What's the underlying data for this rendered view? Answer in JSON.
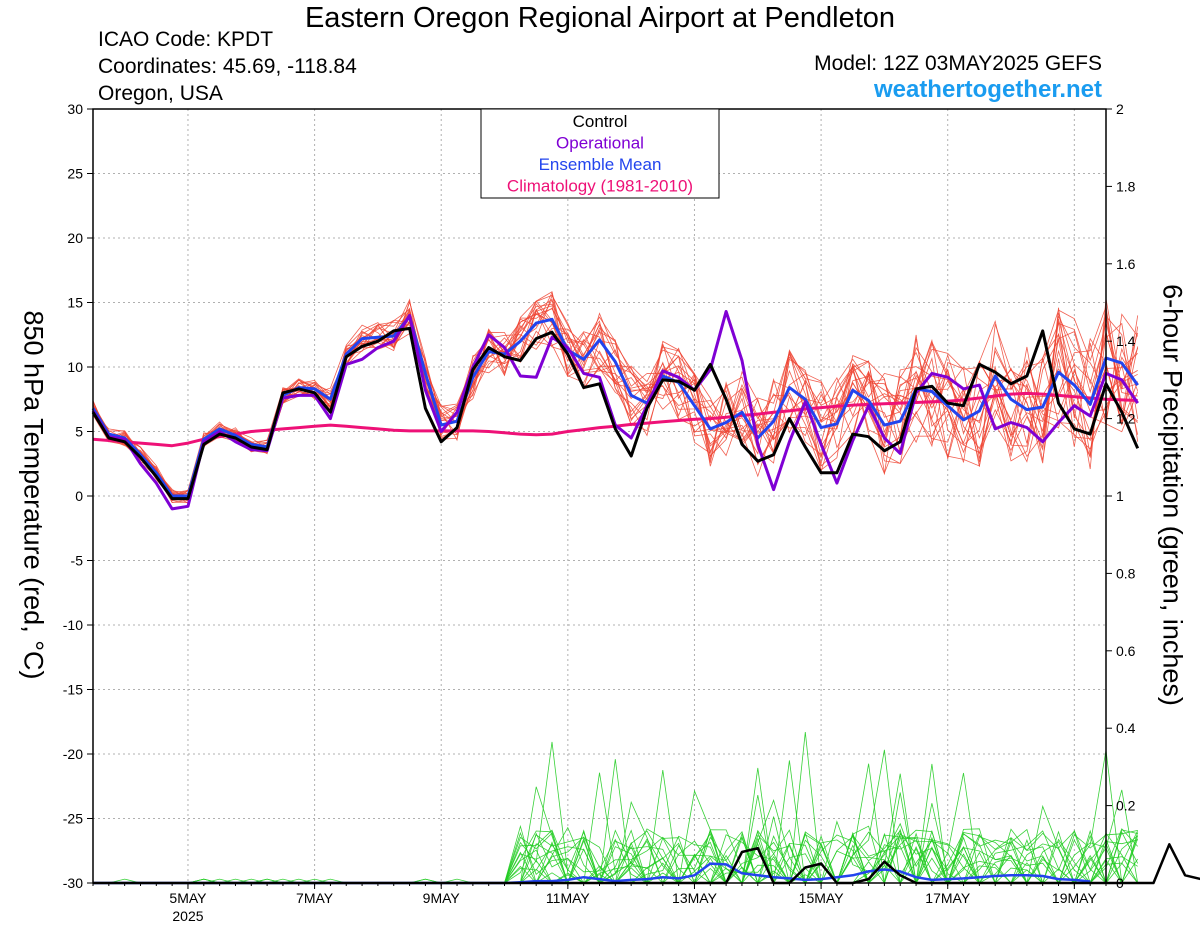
{
  "header": {
    "title": "Eastern Oregon Regional Airport at Pendleton",
    "icao": "ICAO Code: KPDT",
    "coordinates": "Coordinates: 45.69, -118.84",
    "location": "Oregon, USA",
    "model": "Model: 12Z 03MAY2025 GEFS",
    "site": "weathertogether.net"
  },
  "colors": {
    "control": "#000000",
    "operational": "#7f00d4",
    "ensemble_mean": "#2244ee",
    "climatology": "#ee1177",
    "members_temp": "#ee4433",
    "members_precip": "#22cc22",
    "site_link": "#1a9cf0"
  },
  "chart_data": {
    "type": "line",
    "xlabel": "",
    "ylabel": "850 hPa Temperature (red, °C)",
    "y2label": "6-hour Precipitation (green, inches)",
    "x_ticks": [
      {
        "day": 5,
        "label": "5MAY",
        "sublabel": "2025"
      },
      {
        "day": 7,
        "label": "7MAY",
        "sublabel": ""
      },
      {
        "day": 9,
        "label": "9MAY",
        "sublabel": ""
      },
      {
        "day": 11,
        "label": "11MAY",
        "sublabel": ""
      },
      {
        "day": 13,
        "label": "13MAY",
        "sublabel": ""
      },
      {
        "day": 15,
        "label": "15MAY",
        "sublabel": ""
      },
      {
        "day": 17,
        "label": "17MAY",
        "sublabel": ""
      },
      {
        "day": 19,
        "label": "19MAY",
        "sublabel": ""
      }
    ],
    "xlim": [
      3.5,
      19.5
    ],
    "ylim": [
      -30,
      30
    ],
    "y_ticks": [
      30,
      25,
      20,
      15,
      10,
      5,
      0,
      -5,
      -10,
      -15,
      -20,
      -25,
      -30
    ],
    "y2lim": [
      0,
      2
    ],
    "y2_ticks": [
      "2",
      "1.8",
      "1.6",
      "1.4",
      "1.2",
      "1",
      "0.8",
      "0.6",
      "0.4",
      "0.2",
      "0"
    ],
    "grid": true,
    "legend": {
      "position": "top-center",
      "entries": [
        {
          "label": "Control",
          "color": "#000000"
        },
        {
          "label": "Operational",
          "color": "#7f00d4"
        },
        {
          "label": "Ensemble Mean",
          "color": "#2244ee"
        },
        {
          "label": "Climatology (1981-2010)",
          "color": "#ee1177"
        }
      ]
    },
    "x_start_day": 3.5,
    "x_step_days": 0.25,
    "series": [
      {
        "name": "Control",
        "color": "#000000",
        "axis": "temp",
        "values": [
          6.5,
          4.5,
          4.2,
          3.0,
          1.5,
          -0.2,
          -0.2,
          4.0,
          4.8,
          4.5,
          3.8,
          3.6,
          8.0,
          8.3,
          8.0,
          6.5,
          10.8,
          11.6,
          12.0,
          12.8,
          13.0,
          6.8,
          4.2,
          5.3,
          9.8,
          11.5,
          10.8,
          10.5,
          12.2,
          12.7,
          11.0,
          8.4,
          8.7,
          5.2,
          3.1,
          6.8,
          9.0,
          8.9,
          8.2,
          10.2,
          7.5,
          4.0,
          2.7,
          3.2,
          6.0,
          3.8,
          1.8,
          1.8,
          4.8,
          4.6,
          3.5,
          4.2,
          8.3,
          8.5,
          7.2,
          7.0,
          10.2,
          9.6,
          8.7,
          9.3,
          12.8,
          7.2,
          5.2,
          4.8,
          8.7,
          6.5,
          3.7
        ]
      },
      {
        "name": "Operational",
        "color": "#7f00d4",
        "axis": "temp",
        "values": [
          6.6,
          4.6,
          4.4,
          2.5,
          1.0,
          -1.0,
          -0.8,
          4.2,
          5.0,
          4.2,
          3.6,
          3.5,
          7.6,
          7.8,
          7.8,
          6.0,
          10.2,
          10.6,
          11.5,
          12.0,
          14.0,
          8.2,
          5.0,
          6.5,
          10.0,
          12.5,
          11.5,
          9.3,
          9.2,
          12.3,
          11.5,
          9.5,
          9.2,
          5.5,
          4.5,
          7.0,
          9.7,
          9.2,
          8.2,
          9.8,
          14.3,
          10.5,
          4.0,
          0.5,
          4.2,
          7.3,
          4.0,
          1.0,
          4.3,
          7.0,
          4.5,
          3.3,
          8.0,
          9.5,
          9.2,
          8.3,
          8.6,
          5.2,
          5.7,
          5.3,
          4.2,
          5.7,
          7.0,
          6.2,
          9.5,
          9.0,
          7.2
        ]
      },
      {
        "name": "Ensemble Mean",
        "color": "#2244ee",
        "axis": "temp",
        "values": [
          6.8,
          4.8,
          4.5,
          3.2,
          1.8,
          0.0,
          0.0,
          4.4,
          5.2,
          4.7,
          4.0,
          3.8,
          7.8,
          8.4,
          8.3,
          7.5,
          11.0,
          12.2,
          12.3,
          12.4,
          13.9,
          9.5,
          5.5,
          5.8,
          9.2,
          11.2,
          11.0,
          12.0,
          13.4,
          13.7,
          11.3,
          10.6,
          12.1,
          10.4,
          7.8,
          7.2,
          9.3,
          8.8,
          7.0,
          5.2,
          5.7,
          6.5,
          4.5,
          5.8,
          8.4,
          7.5,
          5.3,
          5.6,
          8.2,
          7.4,
          5.5,
          5.8,
          8.3,
          8.1,
          7.0,
          5.9,
          6.6,
          9.3,
          7.5,
          6.7,
          6.9,
          9.6,
          8.6,
          7.1,
          10.7,
          10.3,
          8.6
        ]
      },
      {
        "name": "Climatology (1981-2010)",
        "color": "#ee1177",
        "axis": "temp",
        "values": [
          4.4,
          4.3,
          4.2,
          4.1,
          4.0,
          3.9,
          4.1,
          4.4,
          4.6,
          4.8,
          5.0,
          5.1,
          5.2,
          5.3,
          5.4,
          5.5,
          5.4,
          5.3,
          5.2,
          5.1,
          5.05,
          5.05,
          5.05,
          5.05,
          5.05,
          5.0,
          4.9,
          4.8,
          4.75,
          4.8,
          5.0,
          5.15,
          5.3,
          5.4,
          5.55,
          5.65,
          5.75,
          5.85,
          5.95,
          6.0,
          6.1,
          6.25,
          6.35,
          6.5,
          6.6,
          6.75,
          6.85,
          6.95,
          7.05,
          7.1,
          7.15,
          7.2,
          7.25,
          7.3,
          7.35,
          7.45,
          7.6,
          7.75,
          7.9,
          7.95,
          7.9,
          7.8,
          7.7,
          7.6,
          7.5,
          7.45,
          7.4
        ]
      },
      {
        "name": "Control 6-hour Precipitation",
        "color": "#000000",
        "axis": "precip",
        "values": [
          0,
          0,
          0,
          0,
          0,
          0,
          0,
          0,
          0,
          0,
          0,
          0,
          0,
          0,
          0,
          0,
          0,
          0,
          0,
          0,
          0,
          0,
          0,
          0,
          0,
          0,
          0,
          0,
          0,
          0,
          0,
          0,
          0,
          0,
          0,
          0,
          0,
          0,
          0,
          0,
          0,
          0.08,
          0.09,
          0,
          0,
          0.04,
          0.05,
          0,
          0,
          0.01,
          0.055,
          0.02,
          0,
          0,
          0,
          0,
          0,
          0,
          0,
          0,
          0,
          0,
          0,
          0,
          0,
          0,
          0,
          0,
          0.1,
          0.02,
          0.01,
          0.01
        ]
      },
      {
        "name": "Ensemble Mean 6-hour Precipitation",
        "color": "#2244ee",
        "axis": "precip",
        "values": [
          0,
          0,
          0,
          0,
          0,
          0,
          0,
          0,
          0,
          0,
          0,
          0,
          0,
          0,
          0,
          0,
          0,
          0,
          0,
          0,
          0,
          0,
          0,
          0,
          0,
          0,
          0,
          0.002,
          0.005,
          0.005,
          0.008,
          0.015,
          0.01,
          0.005,
          0.008,
          0.01,
          0.015,
          0.012,
          0.02,
          0.05,
          0.048,
          0.025,
          0.02,
          0.015,
          0.012,
          0.008,
          0.01,
          0.015,
          0.02,
          0.03,
          0.035,
          0.03,
          0.015,
          0.008,
          0.01,
          0.012,
          0.015,
          0.018,
          0.02,
          0.02,
          0.018,
          0.01,
          0.008,
          0.004
        ]
      }
    ]
  }
}
